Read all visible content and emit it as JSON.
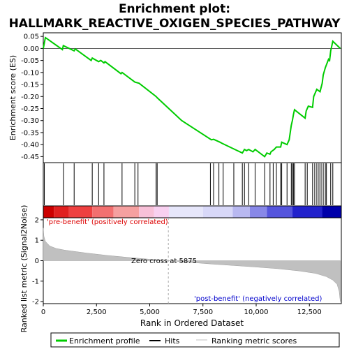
{
  "chart_data": [
    {
      "type": "line",
      "title": "Enrichment plot:\nHALLMARK_REACTIVE_OXIGEN_SPECIES_PATHWAY",
      "title_lines": [
        "Enrichment plot:",
        "HALLMARK_REACTIVE_OXIGEN_SPECIES_PATHWAY"
      ],
      "ylabel": "Enrichment score (ES)",
      "xlim": [
        0,
        14000
      ],
      "ylim": [
        -0.475,
        0.065
      ],
      "yticks": [
        0.05,
        0.0,
        -0.05,
        -0.1,
        -0.15,
        -0.2,
        -0.25,
        -0.3,
        -0.35,
        -0.4,
        -0.45
      ],
      "ytick_labels": [
        "0.05",
        "0.00",
        "-0.05",
        "-0.10",
        "-0.15",
        "-0.20",
        "-0.25",
        "-0.30",
        "-0.35",
        "-0.40",
        "-0.45"
      ],
      "grid": false,
      "color": "#00cc00",
      "series": [
        {
          "x": [
            0,
            100,
            180,
            500,
            900,
            940,
            1450,
            1500,
            2250,
            2300,
            2600,
            2700,
            2850,
            2900,
            3650,
            3700,
            4300,
            4500,
            5300,
            5350,
            6500,
            7900,
            8000,
            8300,
            8400,
            9000,
            9350,
            9450,
            9550,
            9650,
            9850,
            9950,
            10400,
            10500,
            10650,
            10700,
            10850,
            10950,
            11150,
            11200,
            11450,
            11550,
            11650,
            11700,
            11750,
            11800,
            12300,
            12350,
            12450,
            12650,
            12700,
            12850,
            13000,
            13100,
            13150,
            13250,
            13400,
            13450,
            13500,
            13600,
            13950
          ],
          "y": [
            0.0,
            0.045,
            0.04,
            0.02,
            -0.005,
            0.012,
            -0.01,
            -0.002,
            -0.05,
            -0.04,
            -0.055,
            -0.05,
            -0.06,
            -0.055,
            -0.105,
            -0.1,
            -0.14,
            -0.145,
            -0.2,
            -0.205,
            -0.3,
            -0.38,
            -0.378,
            -0.39,
            -0.395,
            -0.42,
            -0.435,
            -0.42,
            -0.425,
            -0.42,
            -0.43,
            -0.42,
            -0.45,
            -0.435,
            -0.44,
            -0.43,
            -0.42,
            -0.41,
            -0.41,
            -0.39,
            -0.4,
            -0.38,
            -0.32,
            -0.3,
            -0.275,
            -0.255,
            -0.29,
            -0.26,
            -0.24,
            -0.245,
            -0.2,
            -0.17,
            -0.18,
            -0.145,
            -0.11,
            -0.08,
            -0.045,
            -0.05,
            -0.01,
            0.03,
            0.0
          ]
        }
      ]
    },
    {
      "type": "scatter",
      "xlim": [
        0,
        14000
      ],
      "hits": [
        50,
        950,
        1450,
        2300,
        2600,
        2850,
        3700,
        4300,
        4450,
        5300,
        5350,
        7850,
        8000,
        8250,
        8450,
        8950,
        9350,
        9450,
        9650,
        9950,
        10400,
        10650,
        10800,
        10950,
        11150,
        11200,
        11450,
        11650,
        11700,
        11750,
        11800,
        12300,
        12400,
        12650,
        12750,
        12850,
        12950,
        13050,
        13150,
        13250,
        13300,
        13500,
        13600
      ]
    },
    {
      "type": "heatmap",
      "xlim": [
        0,
        14000
      ],
      "colors": [
        "#cc0000",
        "#e02020",
        "#ee4040",
        "#f27070",
        "#f5a0a0",
        "#f8c0d8",
        "#f8d0f0",
        "#e6e6fa",
        "#d8d8f8",
        "#b8b8f0",
        "#8888e8",
        "#5555dd",
        "#2222cc",
        "#0000aa"
      ],
      "boundaries": [
        0,
        500,
        1200,
        2300,
        3300,
        4500,
        5200,
        5900,
        7500,
        8900,
        9700,
        10500,
        11700,
        13100,
        14000
      ]
    },
    {
      "type": "area",
      "ylabel": "Ranked list metric (Signal2Noise)",
      "xlabel": "Rank in Ordered Dataset",
      "xlim": [
        0,
        14000
      ],
      "ylim": [
        -2.1,
        2.1
      ],
      "yticks": [
        2,
        1,
        0,
        -1,
        -2
      ],
      "ytick_labels": [
        "2",
        "1",
        "0",
        "-1",
        "-2"
      ],
      "xticks": [
        0,
        2500,
        5000,
        7500,
        10000,
        12500
      ],
      "xtick_labels": [
        "0",
        "2,500",
        "5,000",
        "7,500",
        "10,000",
        "12,500"
      ],
      "zero_cross": 5875,
      "series": [
        {
          "x": [
            0,
            30,
            100,
            300,
            600,
            1000,
            2000,
            3000,
            4000,
            5000,
            5875,
            7000,
            8000,
            9000,
            10000,
            11000,
            12000,
            12800,
            13300,
            13600,
            13800,
            13900,
            13950
          ],
          "y": [
            1.6,
            1.2,
            0.95,
            0.72,
            0.6,
            0.52,
            0.38,
            0.26,
            0.16,
            0.07,
            0.0,
            -0.09,
            -0.17,
            -0.24,
            -0.31,
            -0.39,
            -0.5,
            -0.62,
            -0.78,
            -0.95,
            -1.15,
            -1.5,
            -2.0
          ]
        }
      ],
      "annotations": {
        "pre": "'pre-benefit' (positively correlated)",
        "post": "'post-benefit' (negatively correlated)",
        "zero": "Zero cross at 5875"
      }
    }
  ],
  "legend": {
    "position": "bottom",
    "items": [
      {
        "name": "Enrichment profile",
        "color": "#00cc00"
      },
      {
        "name": "Hits",
        "color": "#000000"
      },
      {
        "name": "Ranking metric scores",
        "color": "#c0c0c0"
      }
    ]
  }
}
